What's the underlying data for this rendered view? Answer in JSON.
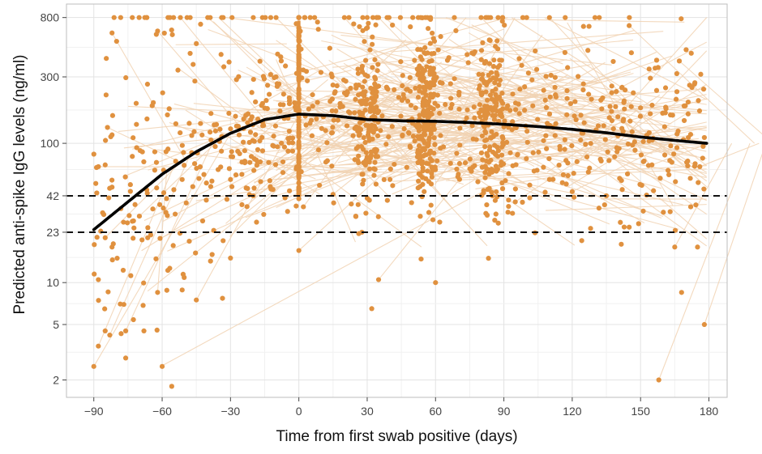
{
  "chart_data": {
    "type": "scatter",
    "title": "",
    "xlabel": "Time from first swab positive (days)",
    "ylabel": "Predicted anti-spike IgG levels (ng/ml)",
    "x_scale": "linear",
    "y_scale": "log",
    "xlim": [
      -102,
      188
    ],
    "ylim": [
      1.5,
      1000
    ],
    "x_ticks": [
      -90,
      -60,
      -30,
      0,
      30,
      60,
      90,
      120,
      150,
      180
    ],
    "x_tick_labels": [
      "−90",
      "−60",
      "−30",
      "0",
      "30",
      "60",
      "90",
      "120",
      "150",
      "180"
    ],
    "y_ticks": [
      2,
      5,
      10,
      23,
      42,
      100,
      300,
      800
    ],
    "y_tick_labels": [
      "2",
      "5",
      "10",
      "23",
      "42",
      "100",
      "300",
      "800"
    ],
    "grid": true,
    "thresholds": [
      {
        "name": "threshold-42",
        "value": 42,
        "style": "dashed"
      },
      {
        "name": "threshold-23",
        "value": 23,
        "style": "dashed"
      }
    ],
    "fit_line": {
      "name": "fitted-curve",
      "x": [
        -90,
        -75,
        -60,
        -45,
        -30,
        -15,
        0,
        15,
        30,
        45,
        60,
        75,
        90,
        105,
        120,
        135,
        150,
        165,
        179
      ],
      "y": [
        24,
        38,
        60,
        87,
        118,
        148,
        162,
        158,
        148,
        145,
        144,
        141,
        137,
        132,
        126,
        119,
        111,
        105,
        100
      ]
    },
    "series": [
      {
        "name": "individual predictions",
        "color": "#E0913F",
        "line_color": "#F1D3B3",
        "generated_points": 1400,
        "generated_trajectories": 220,
        "points": [
          [
            -90,
            2.5
          ],
          [
            -60,
            2.5
          ],
          [
            -88,
            3.5
          ],
          [
            -85,
            4.5
          ],
          [
            -83,
            4.2
          ],
          [
            -78,
            4.3
          ],
          [
            -76,
            4.5
          ],
          [
            -68,
            4.5
          ],
          [
            -62,
            8.5
          ],
          [
            -88,
            10.5
          ],
          [
            -45,
            7.5
          ],
          [
            -30,
            15
          ],
          [
            0,
            17
          ],
          [
            32,
            6.5
          ],
          [
            35,
            10.5
          ],
          [
            60,
            10
          ],
          [
            158,
            2
          ],
          [
            168,
            8.5
          ],
          [
            178,
            5
          ],
          [
            175,
            18
          ],
          [
            -88,
            68
          ],
          [
            -85,
            70
          ],
          [
            -82,
            620
          ],
          [
            -80,
            540
          ],
          [
            -84,
            130
          ],
          [
            -82,
            115
          ],
          [
            -85,
            21
          ],
          [
            -82,
            18
          ],
          [
            -70,
            30
          ],
          [
            -65,
            22
          ],
          [
            -62,
            640
          ],
          [
            -55,
            800
          ],
          [
            -52,
            800
          ],
          [
            -45,
            520
          ],
          [
            -40,
            800
          ],
          [
            -20,
            800
          ],
          [
            -10,
            800
          ],
          [
            5,
            800
          ],
          [
            20,
            800
          ],
          [
            30,
            800
          ],
          [
            35,
            800
          ],
          [
            50,
            800
          ],
          [
            80,
            800
          ],
          [
            100,
            800
          ],
          [
            110,
            800
          ],
          [
            130,
            800
          ],
          [
            145,
            700
          ],
          [
            170,
            470
          ],
          [
            167,
            390
          ],
          [
            178,
            110
          ],
          [
            176,
            68
          ],
          [
            172,
            35
          ],
          [
            165,
            18
          ],
          [
            160,
            32
          ],
          [
            155,
            70
          ],
          [
            150,
            180
          ],
          [
            145,
            25
          ],
          [
            -30,
            55
          ],
          [
            -20,
            42
          ],
          [
            -10,
            300
          ],
          [
            2,
            35
          ],
          [
            0,
            40
          ],
          [
            15,
            43
          ],
          [
            25,
            30
          ],
          [
            40,
            55
          ],
          [
            55,
            45
          ],
          [
            70,
            60
          ],
          [
            85,
            42
          ],
          [
            95,
            38
          ],
          [
            110,
            55
          ],
          [
            120,
            45
          ],
          [
            135,
            42
          ]
        ]
      }
    ]
  }
}
